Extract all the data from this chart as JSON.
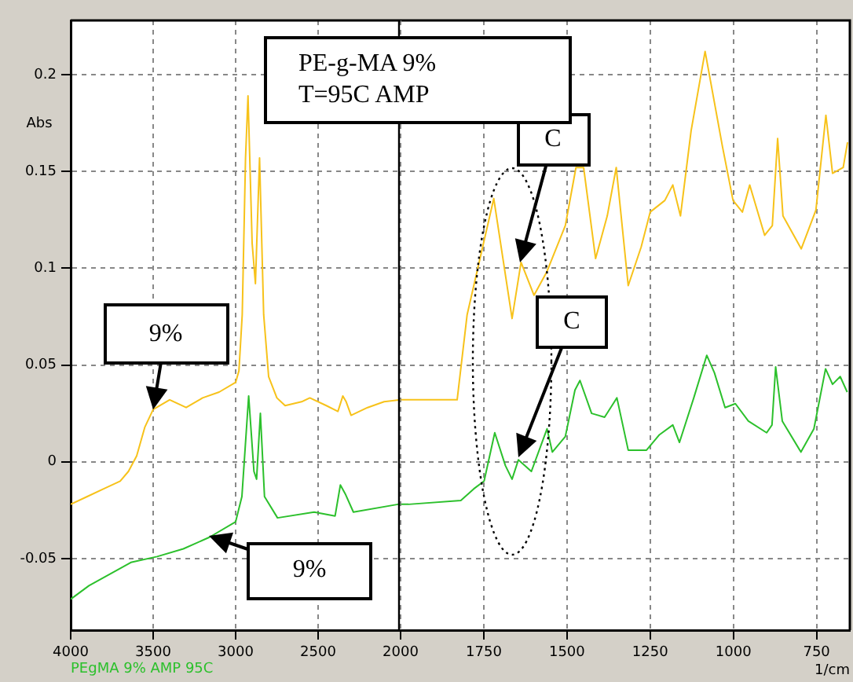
{
  "chart_data": [
    {
      "type": "line",
      "ylabel": "Abs",
      "xlim": [
        4000,
        2000
      ],
      "xticks": [
        4000,
        3500,
        3000,
        2500,
        2000
      ],
      "ylim": [
        -0.087,
        0.228
      ],
      "yticks": [
        -0.05,
        0,
        0.05,
        0.1,
        0.15,
        0.2
      ],
      "grid": true,
      "legend": "bottom left",
      "annotations": [
        "PE-g-MA 9%\nT=95C AMP",
        {
          "text": "9%",
          "x": 3500,
          "y": 0.027
        },
        "9%"
      ],
      "series": [
        {
          "color": "#f7c21a",
          "x": [
            4000,
            3900,
            3800,
            3700,
            3650,
            3600,
            3550,
            3500,
            3400,
            3300,
            3200,
            3100,
            3000,
            2980,
            2960,
            2940,
            2925,
            2900,
            2880,
            2855,
            2830,
            2800,
            2750,
            2700,
            2600,
            2550,
            2450,
            2380,
            2350,
            2330,
            2300,
            2200,
            2100,
            2000
          ],
          "values": [
            -0.022,
            -0.018,
            -0.014,
            -0.01,
            -0.005,
            0.003,
            0.018,
            0.027,
            0.032,
            0.028,
            0.033,
            0.036,
            0.041,
            0.047,
            0.076,
            0.157,
            0.189,
            0.113,
            0.092,
            0.157,
            0.076,
            0.044,
            0.033,
            0.029,
            0.031,
            0.033,
            0.029,
            0.026,
            0.034,
            0.031,
            0.024,
            0.028,
            0.031,
            0.032
          ]
        },
        {
          "name": "PEgMA 9% AMP 95C",
          "color": "#2cc02c",
          "x": [
            4000,
            3889,
            3762,
            3635,
            3476,
            3317,
            3159,
            3000,
            2962,
            2921,
            2889,
            2873,
            2850,
            2825,
            2746,
            2524,
            2397,
            2365,
            2333,
            2286,
            2016,
            2000
          ],
          "values": [
            -0.071,
            -0.064,
            -0.058,
            -0.052,
            -0.049,
            -0.045,
            -0.039,
            -0.031,
            -0.018,
            0.034,
            -0.005,
            -0.009,
            0.025,
            -0.018,
            -0.029,
            -0.026,
            -0.028,
            -0.012,
            -0.017,
            -0.026,
            -0.022,
            -0.022
          ]
        }
      ]
    },
    {
      "type": "line",
      "xlabel": "1/cm",
      "xlim": [
        2000,
        650
      ],
      "xticks": [
        1750,
        1500,
        1250,
        1000,
        750
      ],
      "ylim": [
        -0.087,
        0.228
      ],
      "yticks": [
        -0.05,
        0,
        0.05,
        0.1,
        0.15,
        0.2
      ],
      "grid": true,
      "tick_labels": "x",
      "annotations": [
        "C",
        "C"
      ],
      "series": [
        {
          "color": "#f7c21a",
          "x": [
            2000,
            1900,
            1830,
            1800,
            1720,
            1665,
            1638,
            1599,
            1561,
            1505,
            1473,
            1450,
            1414,
            1379,
            1352,
            1316,
            1277,
            1250,
            1206,
            1182,
            1159,
            1127,
            1085,
            1033,
            1001,
            973,
            951,
            906,
            883,
            867,
            851,
            796,
            752,
            722,
            702,
            670,
            657
          ],
          "values": [
            0.032,
            0.032,
            0.032,
            0.076,
            0.136,
            0.074,
            0.103,
            0.086,
            0.098,
            0.122,
            0.152,
            0.152,
            0.105,
            0.127,
            0.152,
            0.091,
            0.111,
            0.129,
            0.135,
            0.143,
            0.127,
            0.171,
            0.212,
            0.163,
            0.135,
            0.129,
            0.143,
            0.117,
            0.122,
            0.167,
            0.127,
            0.11,
            0.13,
            0.179,
            0.149,
            0.152,
            0.165
          ]
        },
        {
          "color": "#2cc02c",
          "x": [
            2000,
            1976,
            1819,
            1780,
            1749,
            1717,
            1685,
            1665,
            1646,
            1607,
            1560,
            1544,
            1505,
            1476,
            1461,
            1426,
            1387,
            1350,
            1316,
            1261,
            1222,
            1182,
            1162,
            1119,
            1080,
            1057,
            1025,
            994,
            955,
            900,
            884,
            873,
            853,
            797,
            758,
            723,
            702,
            679,
            658
          ],
          "values": [
            -0.022,
            -0.022,
            -0.02,
            -0.014,
            -0.01,
            0.015,
            -0.002,
            -0.009,
            0.001,
            -0.005,
            0.017,
            0.005,
            0.013,
            0.037,
            0.042,
            0.025,
            0.023,
            0.033,
            0.006,
            0.006,
            0.014,
            0.019,
            0.01,
            0.033,
            0.055,
            0.046,
            0.028,
            0.03,
            0.021,
            0.015,
            0.019,
            0.049,
            0.021,
            0.005,
            0.017,
            0.048,
            0.04,
            0.044,
            0.036
          ]
        }
      ]
    }
  ]
}
